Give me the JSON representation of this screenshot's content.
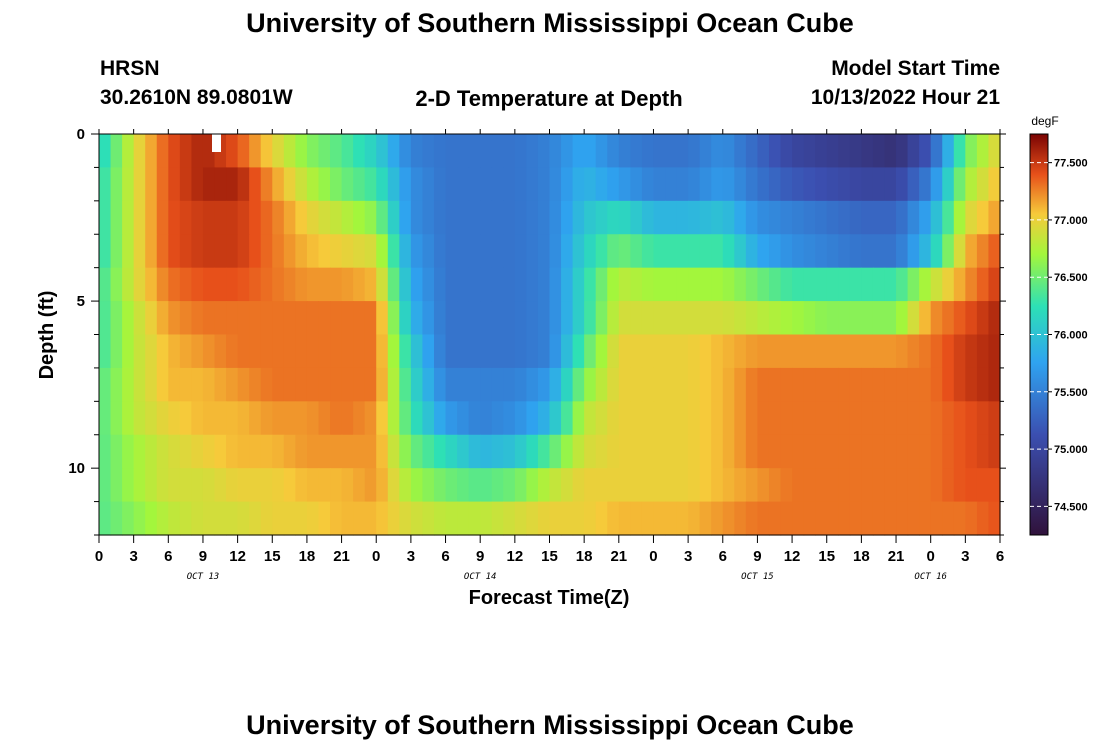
{
  "page": {
    "title_top": "University of Southern Mississippi Ocean Cube",
    "title_bottom": "University of Southern Mississippi Ocean Cube",
    "station_name": "HRSN",
    "station_coords": "30.2610N  89.0801W",
    "model_label": "Model Start Time",
    "model_start": "10/13/2022 Hour 21"
  },
  "chart_data": {
    "type": "heatmap",
    "title": "2-D Temperature at Depth",
    "xlabel": "Forecast Time(Z)",
    "ylabel": "Depth (ft)",
    "y_range_ft": [
      0,
      12
    ],
    "y_ticks": [
      "0",
      "5",
      "10"
    ],
    "x_ticks": [
      "0",
      "3",
      "6",
      "9",
      "12",
      "15",
      "18",
      "21",
      "0",
      "3",
      "6",
      "9",
      "12",
      "15",
      "18",
      "21",
      "0",
      "3",
      "6",
      "9",
      "12",
      "15",
      "18",
      "21",
      "0",
      "3",
      "6"
    ],
    "date_labels": [
      "OCT 13",
      "OCT 14",
      "OCT 15",
      "OCT 16"
    ],
    "colorbar": {
      "unit": "degF",
      "range": [
        74.25,
        77.75
      ],
      "tick_values": [
        74.5,
        75.0,
        75.5,
        76.0,
        76.5,
        77.0,
        77.5
      ],
      "tick_labels": [
        "74.500",
        "75.000",
        "75.500",
        "76.000",
        "76.500",
        "77.000",
        "77.500"
      ]
    },
    "hours_per_column": 1,
    "rows": 12,
    "row_depths_ft": [
      "0-1",
      "1-2",
      "2-3",
      "3-4",
      "4-5",
      "5-6",
      "6-7",
      "7-8",
      "8-9",
      "9-10",
      "10-11",
      "11-12"
    ],
    "keyframe_hours": [
      0,
      3,
      6,
      9,
      12,
      15,
      18,
      21,
      24,
      27,
      30,
      33,
      36,
      39,
      42,
      45,
      48,
      51,
      54,
      57,
      60,
      63,
      66,
      69,
      72,
      75,
      78
    ],
    "temperature_degF_by_row": [
      [
        76.1,
        76.9,
        77.4,
        77.6,
        77.4,
        77.0,
        76.6,
        76.4,
        76.1,
        75.5,
        75.4,
        75.4,
        75.4,
        75.5,
        75.8,
        75.5,
        75.4,
        75.4,
        75.6,
        75.3,
        75.0,
        74.9,
        74.8,
        74.7,
        75.2,
        76.5,
        77.0
      ],
      [
        76.2,
        76.9,
        77.4,
        77.6,
        77.6,
        77.2,
        76.8,
        76.5,
        76.3,
        75.6,
        75.4,
        75.4,
        75.4,
        75.5,
        75.9,
        75.7,
        75.5,
        75.5,
        75.7,
        75.4,
        75.2,
        75.1,
        75.0,
        75.0,
        75.5,
        76.7,
        77.1
      ],
      [
        76.2,
        76.9,
        77.4,
        77.5,
        77.5,
        77.3,
        77.0,
        76.8,
        76.6,
        75.6,
        75.4,
        75.4,
        75.4,
        75.5,
        76.0,
        76.2,
        75.9,
        75.9,
        76.0,
        75.6,
        75.5,
        75.4,
        75.3,
        75.3,
        75.8,
        76.9,
        77.2
      ],
      [
        76.2,
        76.9,
        77.4,
        77.5,
        77.5,
        77.3,
        77.1,
        77.0,
        76.9,
        75.7,
        75.4,
        75.4,
        75.4,
        75.5,
        76.1,
        76.5,
        76.3,
        76.3,
        76.3,
        75.8,
        75.6,
        75.5,
        75.4,
        75.4,
        76.0,
        77.1,
        77.4
      ],
      [
        76.3,
        76.9,
        77.3,
        77.4,
        77.4,
        77.3,
        77.2,
        77.2,
        77.1,
        75.8,
        75.4,
        75.4,
        75.4,
        75.5,
        76.2,
        76.8,
        76.7,
        76.7,
        76.7,
        76.5,
        76.3,
        76.3,
        76.3,
        76.3,
        76.8,
        77.2,
        77.5
      ],
      [
        76.3,
        76.8,
        77.2,
        77.3,
        77.3,
        77.3,
        77.3,
        77.3,
        77.3,
        75.9,
        75.4,
        75.4,
        75.4,
        75.5,
        76.2,
        76.9,
        76.9,
        76.9,
        76.9,
        76.8,
        76.7,
        76.6,
        76.6,
        76.6,
        77.2,
        77.4,
        77.6
      ],
      [
        76.3,
        76.8,
        77.1,
        77.2,
        77.3,
        77.3,
        77.3,
        77.3,
        77.3,
        76.1,
        75.4,
        75.4,
        75.4,
        75.5,
        76.4,
        77.0,
        77.0,
        77.0,
        77.1,
        77.2,
        77.2,
        77.2,
        77.2,
        77.2,
        77.3,
        77.5,
        77.6
      ],
      [
        76.4,
        76.8,
        77.1,
        77.1,
        77.2,
        77.3,
        77.3,
        77.3,
        77.3,
        76.2,
        75.5,
        75.5,
        75.5,
        75.7,
        76.6,
        77.0,
        77.0,
        77.0,
        77.1,
        77.3,
        77.3,
        77.3,
        77.3,
        77.3,
        77.3,
        77.5,
        77.6
      ],
      [
        76.4,
        76.8,
        77.0,
        77.1,
        77.1,
        77.2,
        77.2,
        77.3,
        77.2,
        76.3,
        75.7,
        75.5,
        75.6,
        75.9,
        76.8,
        77.0,
        77.0,
        77.0,
        77.1,
        77.3,
        77.3,
        77.3,
        77.3,
        77.3,
        77.3,
        77.4,
        77.5
      ],
      [
        76.4,
        76.7,
        76.9,
        77.0,
        77.1,
        77.1,
        77.2,
        77.2,
        77.2,
        76.5,
        76.2,
        75.9,
        76.0,
        76.4,
        76.9,
        77.0,
        77.0,
        77.0,
        77.1,
        77.3,
        77.3,
        77.3,
        77.3,
        77.3,
        77.3,
        77.4,
        77.5
      ],
      [
        76.4,
        76.7,
        76.9,
        76.9,
        77.0,
        77.0,
        77.1,
        77.1,
        77.2,
        76.7,
        76.5,
        76.4,
        76.5,
        76.8,
        77.0,
        77.0,
        77.0,
        77.0,
        77.1,
        77.2,
        77.3,
        77.3,
        77.3,
        77.3,
        77.3,
        77.4,
        77.4
      ],
      [
        76.4,
        76.6,
        76.8,
        76.9,
        76.9,
        77.0,
        77.0,
        77.1,
        77.1,
        76.9,
        76.8,
        76.8,
        76.9,
        77.0,
        77.0,
        77.1,
        77.1,
        77.1,
        77.2,
        77.3,
        77.3,
        77.3,
        77.3,
        77.3,
        77.3,
        77.3,
        77.4
      ]
    ]
  }
}
